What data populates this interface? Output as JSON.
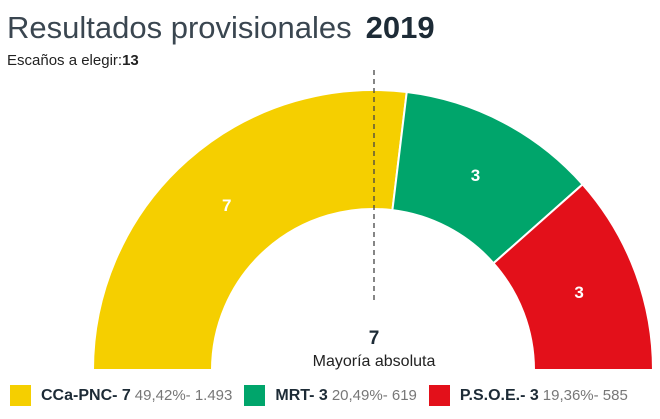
{
  "header": {
    "title": "Resultados provisionales",
    "year": "2019",
    "seats_label": "Escaños a elegir:",
    "seats_value": "13"
  },
  "chart_data": {
    "type": "pie",
    "subtype": "semicircle-parliament",
    "total_seats": 13,
    "majority": {
      "value": "7",
      "label": "Mayoría absoluta"
    },
    "series": [
      {
        "name": "CCa-PNC",
        "seats": 7,
        "percent": "49,42%",
        "votes": "1.493",
        "color": "#f5cf00",
        "label": "CCa-PNC- 7",
        "stats": "49,42%- 1.493"
      },
      {
        "name": "MRT",
        "seats": 3,
        "percent": "20,49%",
        "votes": "619",
        "color": "#00a56b",
        "label": "MRT- 3",
        "stats": "20,49%- 619"
      },
      {
        "name": "P.S.O.E.",
        "seats": 3,
        "percent": "19,36%",
        "votes": "585",
        "color": "#e3101a",
        "label": "P.S.O.E.- 3",
        "stats": "19,36%- 585"
      }
    ]
  }
}
